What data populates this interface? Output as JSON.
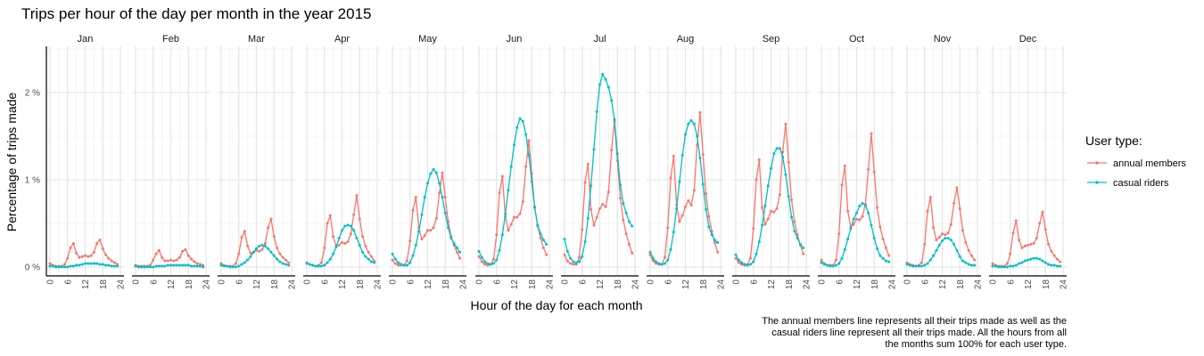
{
  "chart_data": {
    "type": "line",
    "title": "Trips per hour of the day per month in the year 2015",
    "xlabel": "Hour of the day for each month",
    "ylabel": "Percentage of trips made",
    "panels": [
      "Jan",
      "Feb",
      "Mar",
      "Apr",
      "May",
      "Jun",
      "Jul",
      "Aug",
      "Sep",
      "Oct",
      "Nov",
      "Dec"
    ],
    "xlim": [
      0,
      24
    ],
    "x_ticks": [
      0,
      6,
      12,
      18,
      24
    ],
    "ylim": [
      0,
      2.5
    ],
    "y_ticks": [
      0,
      1,
      2
    ],
    "y_tick_labels": [
      "0 %",
      "1 %",
      "2 %"
    ],
    "grid": true,
    "legend_title": "User type:",
    "legend_position": "right",
    "x_hours": [
      0,
      1,
      2,
      3,
      4,
      5,
      6,
      7,
      8,
      9,
      10,
      11,
      12,
      13,
      14,
      15,
      16,
      17,
      18,
      19,
      20,
      21,
      22,
      23
    ],
    "series": [
      {
        "name": "annual members",
        "color": "#F8766D",
        "panels": {
          "Jan": [
            0.04,
            0.02,
            0.01,
            0.01,
            0.01,
            0.03,
            0.1,
            0.22,
            0.27,
            0.16,
            0.11,
            0.12,
            0.13,
            0.12,
            0.13,
            0.17,
            0.27,
            0.31,
            0.21,
            0.14,
            0.1,
            0.07,
            0.05,
            0.03
          ],
          "Feb": [
            0.02,
            0.01,
            0.01,
            0.01,
            0.01,
            0.02,
            0.08,
            0.15,
            0.19,
            0.11,
            0.07,
            0.07,
            0.08,
            0.07,
            0.08,
            0.11,
            0.18,
            0.2,
            0.13,
            0.09,
            0.06,
            0.04,
            0.03,
            0.02
          ],
          "Mar": [
            0.04,
            0.02,
            0.01,
            0.01,
            0.01,
            0.04,
            0.15,
            0.34,
            0.41,
            0.24,
            0.16,
            0.17,
            0.19,
            0.18,
            0.2,
            0.27,
            0.45,
            0.55,
            0.35,
            0.22,
            0.15,
            0.11,
            0.08,
            0.05
          ],
          "Apr": [
            0.05,
            0.03,
            0.02,
            0.01,
            0.02,
            0.05,
            0.22,
            0.5,
            0.59,
            0.35,
            0.24,
            0.25,
            0.28,
            0.27,
            0.29,
            0.38,
            0.6,
            0.82,
            0.55,
            0.35,
            0.24,
            0.17,
            0.12,
            0.07
          ],
          "May": [
            0.08,
            0.04,
            0.02,
            0.02,
            0.02,
            0.07,
            0.3,
            0.65,
            0.8,
            0.45,
            0.32,
            0.36,
            0.42,
            0.42,
            0.45,
            0.56,
            0.85,
            1.08,
            0.8,
            0.52,
            0.35,
            0.25,
            0.17,
            0.1
          ],
          "Jun": [
            0.12,
            0.06,
            0.03,
            0.02,
            0.03,
            0.09,
            0.37,
            0.85,
            1.04,
            0.58,
            0.42,
            0.49,
            0.57,
            0.57,
            0.61,
            0.75,
            1.15,
            1.45,
            1.07,
            0.69,
            0.47,
            0.33,
            0.22,
            0.14
          ],
          "Jul": [
            0.14,
            0.07,
            0.04,
            0.03,
            0.03,
            0.11,
            0.43,
            0.97,
            1.18,
            0.66,
            0.48,
            0.57,
            0.67,
            0.72,
            0.69,
            0.86,
            1.34,
            1.67,
            1.22,
            0.79,
            0.54,
            0.38,
            0.26,
            0.16
          ],
          "Aug": [
            0.14,
            0.07,
            0.04,
            0.03,
            0.03,
            0.11,
            0.45,
            1.02,
            1.27,
            0.71,
            0.52,
            0.59,
            0.69,
            0.76,
            0.71,
            0.88,
            1.4,
            1.77,
            1.29,
            0.84,
            0.58,
            0.41,
            0.28,
            0.17
          ],
          "Sep": [
            0.1,
            0.05,
            0.03,
            0.02,
            0.03,
            0.1,
            0.44,
            1.0,
            1.23,
            0.68,
            0.49,
            0.55,
            0.64,
            0.63,
            0.67,
            0.83,
            1.32,
            1.64,
            1.2,
            0.77,
            0.52,
            0.37,
            0.25,
            0.15
          ],
          "Oct": [
            0.08,
            0.04,
            0.02,
            0.02,
            0.02,
            0.08,
            0.38,
            0.94,
            1.16,
            0.64,
            0.46,
            0.49,
            0.55,
            0.54,
            0.58,
            0.72,
            1.12,
            1.53,
            1.09,
            0.68,
            0.46,
            0.32,
            0.22,
            0.13
          ],
          "Nov": [
            0.05,
            0.03,
            0.02,
            0.01,
            0.02,
            0.05,
            0.26,
            0.64,
            0.8,
            0.45,
            0.31,
            0.34,
            0.38,
            0.37,
            0.39,
            0.49,
            0.73,
            0.91,
            0.67,
            0.42,
            0.28,
            0.19,
            0.13,
            0.08
          ],
          "Dec": [
            0.04,
            0.02,
            0.01,
            0.01,
            0.01,
            0.04,
            0.15,
            0.39,
            0.53,
            0.31,
            0.22,
            0.24,
            0.25,
            0.26,
            0.27,
            0.33,
            0.5,
            0.63,
            0.43,
            0.26,
            0.18,
            0.13,
            0.09,
            0.06
          ]
        }
      },
      {
        "name": "casual riders",
        "color": "#00BFC4",
        "panels": {
          "Jan": [
            0.01,
            0.01,
            0.0,
            0.0,
            0.0,
            0.0,
            0.0,
            0.01,
            0.01,
            0.02,
            0.02,
            0.03,
            0.04,
            0.04,
            0.04,
            0.04,
            0.04,
            0.03,
            0.03,
            0.02,
            0.02,
            0.01,
            0.01,
            0.01
          ],
          "Feb": [
            0.01,
            0.0,
            0.0,
            0.0,
            0.0,
            0.0,
            0.0,
            0.01,
            0.01,
            0.01,
            0.01,
            0.02,
            0.02,
            0.02,
            0.02,
            0.02,
            0.02,
            0.02,
            0.02,
            0.01,
            0.01,
            0.01,
            0.01,
            0.0
          ],
          "Mar": [
            0.02,
            0.01,
            0.01,
            0.0,
            0.0,
            0.0,
            0.01,
            0.03,
            0.05,
            0.08,
            0.12,
            0.17,
            0.21,
            0.24,
            0.25,
            0.24,
            0.21,
            0.17,
            0.13,
            0.09,
            0.06,
            0.04,
            0.03,
            0.02
          ],
          "Apr": [
            0.04,
            0.03,
            0.02,
            0.01,
            0.01,
            0.01,
            0.02,
            0.05,
            0.09,
            0.15,
            0.23,
            0.33,
            0.42,
            0.47,
            0.48,
            0.47,
            0.42,
            0.33,
            0.25,
            0.17,
            0.12,
            0.09,
            0.06,
            0.05
          ],
          "May": [
            0.15,
            0.09,
            0.05,
            0.03,
            0.02,
            0.02,
            0.05,
            0.13,
            0.25,
            0.41,
            0.6,
            0.8,
            0.96,
            1.07,
            1.12,
            1.08,
            0.96,
            0.8,
            0.62,
            0.45,
            0.33,
            0.27,
            0.22,
            0.17
          ],
          "Jun": [
            0.18,
            0.11,
            0.06,
            0.04,
            0.03,
            0.04,
            0.08,
            0.19,
            0.37,
            0.61,
            0.88,
            1.15,
            1.4,
            1.6,
            1.7,
            1.67,
            1.52,
            1.28,
            0.98,
            0.68,
            0.48,
            0.38,
            0.31,
            0.26
          ],
          "Jul": [
            0.32,
            0.18,
            0.1,
            0.06,
            0.05,
            0.06,
            0.12,
            0.29,
            0.56,
            0.93,
            1.35,
            1.78,
            2.09,
            2.21,
            2.15,
            2.06,
            1.91,
            1.69,
            1.3,
            0.94,
            0.73,
            0.62,
            0.52,
            0.47
          ],
          "Aug": [
            0.17,
            0.1,
            0.06,
            0.04,
            0.03,
            0.04,
            0.08,
            0.2,
            0.4,
            0.67,
            0.98,
            1.28,
            1.52,
            1.64,
            1.68,
            1.64,
            1.5,
            1.25,
            0.95,
            0.66,
            0.46,
            0.37,
            0.31,
            0.28
          ],
          "Sep": [
            0.14,
            0.08,
            0.05,
            0.03,
            0.02,
            0.03,
            0.06,
            0.15,
            0.29,
            0.48,
            0.7,
            0.93,
            1.13,
            1.3,
            1.36,
            1.36,
            1.26,
            1.06,
            0.81,
            0.57,
            0.41,
            0.33,
            0.26,
            0.22
          ],
          "Oct": [
            0.05,
            0.03,
            0.02,
            0.01,
            0.01,
            0.02,
            0.04,
            0.1,
            0.2,
            0.32,
            0.44,
            0.55,
            0.62,
            0.7,
            0.73,
            0.71,
            0.62,
            0.48,
            0.33,
            0.21,
            0.13,
            0.1,
            0.07,
            0.06
          ],
          "Nov": [
            0.03,
            0.02,
            0.01,
            0.01,
            0.01,
            0.01,
            0.02,
            0.04,
            0.08,
            0.13,
            0.19,
            0.25,
            0.3,
            0.33,
            0.33,
            0.31,
            0.26,
            0.19,
            0.12,
            0.07,
            0.05,
            0.03,
            0.02,
            0.02
          ],
          "Dec": [
            0.01,
            0.01,
            0.0,
            0.0,
            0.0,
            0.0,
            0.01,
            0.01,
            0.02,
            0.04,
            0.05,
            0.07,
            0.08,
            0.09,
            0.1,
            0.1,
            0.09,
            0.07,
            0.05,
            0.03,
            0.02,
            0.02,
            0.01,
            0.01
          ]
        }
      }
    ],
    "caption_lines": [
      "The annual members line represents all their trips made as well as the",
      "casual riders line represent all their trips made. All the hours from all",
      "the months sum 100% for each user type."
    ]
  }
}
